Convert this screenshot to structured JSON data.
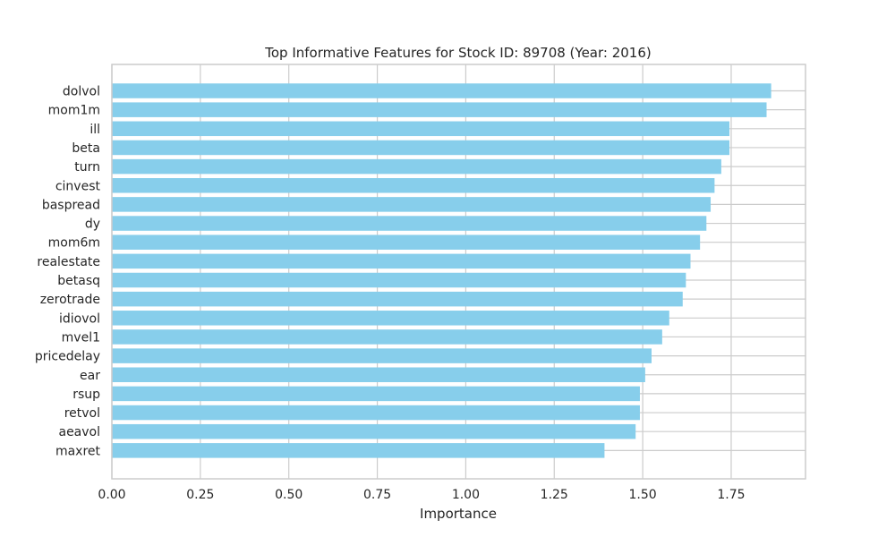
{
  "chart_data": {
    "type": "bar",
    "orientation": "horizontal",
    "title": "Top Informative Features for Stock ID: 89708 (Year: 2016)",
    "xlabel": "Importance",
    "ylabel": "",
    "xlim": [
      0,
      1.96
    ],
    "xticks": [
      "0.00",
      "0.25",
      "0.50",
      "0.75",
      "1.00",
      "1.25",
      "1.50",
      "1.75"
    ],
    "grid": true,
    "bar_color": "#87ceeb",
    "categories": [
      "dolvol",
      "mom1m",
      "ill",
      "beta",
      "turn",
      "cinvest",
      "baspread",
      "dy",
      "mom6m",
      "realestate",
      "betasq",
      "zerotrade",
      "idiovol",
      "mvel1",
      "pricedelay",
      "ear",
      "rsup",
      "retvol",
      "aeavol",
      "maxret"
    ],
    "values": [
      1.863,
      1.85,
      1.745,
      1.745,
      1.722,
      1.703,
      1.692,
      1.68,
      1.662,
      1.635,
      1.622,
      1.613,
      1.575,
      1.555,
      1.525,
      1.507,
      1.492,
      1.492,
      1.48,
      1.392
    ]
  }
}
